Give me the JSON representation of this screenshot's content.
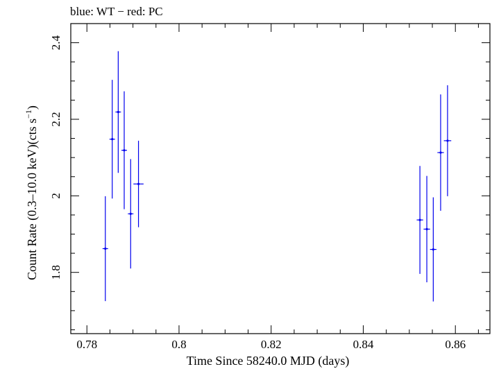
{
  "chart_data": {
    "type": "scatter",
    "title": "blue: WT − red: PC",
    "xlabel": "Time Since 58240.0 MJD (days)",
    "ylabel_main": "Count Rate (0.3–10.0 keV)(cts s",
    "ylabel_sup": "−1",
    "ylabel_end": ")",
    "xlim": [
      0.7765,
      0.8675
    ],
    "ylim": [
      1.64,
      2.45
    ],
    "xticks": [
      0.78,
      0.8,
      0.82,
      0.84,
      0.86
    ],
    "xtick_labels": [
      "0.78",
      "0.8",
      "0.82",
      "0.84",
      "0.86"
    ],
    "x_minor_step": 0.005,
    "yticks": [
      1.8,
      2.0,
      2.2,
      2.4
    ],
    "ytick_labels": [
      "1.8",
      "2",
      "2.2",
      "2.4"
    ],
    "y_minor_step": 0.05,
    "series": [
      {
        "name": "WT",
        "color": "#0000ee",
        "points": [
          {
            "x": 0.784,
            "xerr": 0.0006,
            "y": 1.862,
            "yerr": 0.137
          },
          {
            "x": 0.7855,
            "xerr": 0.0006,
            "y": 2.148,
            "yerr": 0.155
          },
          {
            "x": 0.7868,
            "xerr": 0.0006,
            "y": 2.219,
            "yerr": 0.159
          },
          {
            "x": 0.7881,
            "xerr": 0.0006,
            "y": 2.119,
            "yerr": 0.154
          },
          {
            "x": 0.7895,
            "xerr": 0.0006,
            "y": 1.953,
            "yerr": 0.143
          },
          {
            "x": 0.7912,
            "xerr": 0.0011,
            "y": 2.031,
            "yerr": 0.113
          },
          {
            "x": 0.8523,
            "xerr": 0.0007,
            "y": 1.937,
            "yerr": 0.141
          },
          {
            "x": 0.8538,
            "xerr": 0.0007,
            "y": 1.913,
            "yerr": 0.139
          },
          {
            "x": 0.8552,
            "xerr": 0.0007,
            "y": 1.86,
            "yerr": 0.136
          },
          {
            "x": 0.8568,
            "xerr": 0.0007,
            "y": 2.113,
            "yerr": 0.152
          },
          {
            "x": 0.8583,
            "xerr": 0.0008,
            "y": 2.144,
            "yerr": 0.145
          }
        ]
      }
    ]
  }
}
